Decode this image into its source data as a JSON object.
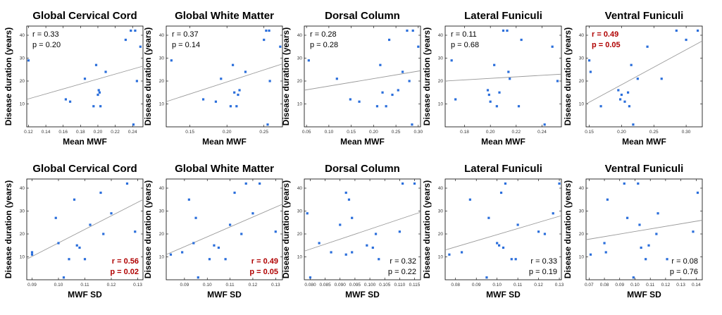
{
  "colors": {
    "point": "#2a6edb",
    "fit": "#9a9a9a",
    "significant": "#b00000",
    "text": "#000000"
  },
  "chart_data": [
    {
      "type": "scatter",
      "title": "Global Cervical Cord",
      "xlabel": "Mean MWF",
      "ylabel": "Disease duration (years)",
      "xlim": [
        0.118,
        0.252
      ],
      "ylim": [
        0,
        44
      ],
      "xticks": [
        0.12,
        0.14,
        0.16,
        0.18,
        0.2,
        0.22,
        0.24
      ],
      "yticks": [
        10,
        20,
        30,
        40
      ],
      "xtick_labels": [
        "0.12",
        "0.14",
        "0.16",
        "0.18",
        "0.20",
        "0.22",
        "0.24"
      ],
      "stats": {
        "r": "r = 0.33",
        "p": "p = 0.20",
        "significant": false,
        "position": "top-left"
      },
      "fit": [
        [
          0.118,
          12
        ],
        [
          0.252,
          26.5
        ]
      ],
      "points": [
        [
          0.12,
          29
        ],
        [
          0.163,
          12
        ],
        [
          0.168,
          11
        ],
        [
          0.185,
          21
        ],
        [
          0.195,
          9
        ],
        [
          0.198,
          27
        ],
        [
          0.2,
          14
        ],
        [
          0.201,
          16
        ],
        [
          0.202,
          15
        ],
        [
          0.203,
          9
        ],
        [
          0.209,
          24
        ],
        [
          0.232,
          38
        ],
        [
          0.238,
          42
        ],
        [
          0.241,
          1
        ],
        [
          0.243,
          42
        ],
        [
          0.245,
          20
        ],
        [
          0.249,
          35
        ]
      ]
    },
    {
      "type": "scatter",
      "title": "Global White Matter",
      "xlabel": "Mean MWF",
      "ylabel": "Disease duration (years)",
      "xlim": [
        0.118,
        0.275
      ],
      "ylim": [
        0,
        44
      ],
      "xticks": [
        0.15,
        0.2,
        0.25
      ],
      "yticks": [
        10,
        20,
        30,
        40
      ],
      "xtick_labels": [
        "0.15",
        "0.20",
        "0.25"
      ],
      "stats": {
        "r": "r = 0.37",
        "p": "p = 0.14",
        "significant": false,
        "position": "top-left"
      },
      "fit": [
        [
          0.118,
          11
        ],
        [
          0.275,
          27.5
        ]
      ],
      "points": [
        [
          0.125,
          29
        ],
        [
          0.168,
          12
        ],
        [
          0.185,
          11
        ],
        [
          0.192,
          21
        ],
        [
          0.205,
          9
        ],
        [
          0.208,
          27
        ],
        [
          0.21,
          15
        ],
        [
          0.213,
          9
        ],
        [
          0.215,
          14
        ],
        [
          0.217,
          16
        ],
        [
          0.225,
          24
        ],
        [
          0.25,
          38
        ],
        [
          0.253,
          42
        ],
        [
          0.255,
          1
        ],
        [
          0.257,
          42
        ],
        [
          0.258,
          20
        ],
        [
          0.272,
          35
        ]
      ]
    },
    {
      "type": "scatter",
      "title": "Dorsal Column",
      "xlabel": "Mean MWF",
      "ylabel": "Disease duration (years)",
      "xlim": [
        0.045,
        0.305
      ],
      "ylim": [
        0,
        44
      ],
      "xticks": [
        0.05,
        0.1,
        0.15,
        0.2,
        0.25,
        0.3
      ],
      "yticks": [
        10,
        20,
        30,
        40
      ],
      "xtick_labels": [
        "0.05",
        "0.10",
        "0.15",
        "0.20",
        "0.25",
        "0.30"
      ],
      "stats": {
        "r": "r = 0.28",
        "p": "p = 0.28",
        "significant": false,
        "position": "top-left"
      },
      "fit": [
        [
          0.045,
          16
        ],
        [
          0.305,
          24.5
        ]
      ],
      "points": [
        [
          0.055,
          29
        ],
        [
          0.118,
          21
        ],
        [
          0.148,
          12
        ],
        [
          0.168,
          11
        ],
        [
          0.208,
          9
        ],
        [
          0.215,
          27
        ],
        [
          0.22,
          15
        ],
        [
          0.228,
          9
        ],
        [
          0.235,
          38
        ],
        [
          0.242,
          14
        ],
        [
          0.255,
          16
        ],
        [
          0.265,
          24
        ],
        [
          0.275,
          42
        ],
        [
          0.28,
          20
        ],
        [
          0.286,
          1
        ],
        [
          0.288,
          42
        ],
        [
          0.3,
          35
        ]
      ]
    },
    {
      "type": "scatter",
      "title": "Lateral Funiculi",
      "xlabel": "Mean MWF",
      "ylabel": "Disease duration (years)",
      "xlim": [
        0.165,
        0.255
      ],
      "ylim": [
        0,
        44
      ],
      "xticks": [
        0.18,
        0.2,
        0.22,
        0.24
      ],
      "yticks": [
        10,
        20,
        30,
        40
      ],
      "xtick_labels": [
        "0.18",
        "0.20",
        "0.22",
        "0.24"
      ],
      "stats": {
        "r": "r = 0.11",
        "p": "p = 0.68",
        "significant": false,
        "position": "top-left"
      },
      "fit": [
        [
          0.165,
          20
        ],
        [
          0.255,
          23
        ]
      ],
      "points": [
        [
          0.17,
          29
        ],
        [
          0.173,
          12
        ],
        [
          0.198,
          16
        ],
        [
          0.199,
          14
        ],
        [
          0.2,
          11
        ],
        [
          0.203,
          27
        ],
        [
          0.205,
          9
        ],
        [
          0.207,
          15
        ],
        [
          0.21,
          42
        ],
        [
          0.213,
          42
        ],
        [
          0.214,
          24
        ],
        [
          0.215,
          21
        ],
        [
          0.222,
          9
        ],
        [
          0.224,
          38
        ],
        [
          0.242,
          1
        ],
        [
          0.248,
          35
        ],
        [
          0.252,
          20
        ]
      ]
    },
    {
      "type": "scatter",
      "title": "Ventral Funiculi",
      "xlabel": "Mean MWF",
      "ylabel": "Disease duration (years)",
      "xlim": [
        0.145,
        0.325
      ],
      "ylim": [
        0,
        44
      ],
      "xticks": [
        0.15,
        0.2,
        0.25,
        0.3
      ],
      "yticks": [
        10,
        20,
        30,
        40
      ],
      "xtick_labels": [
        "0.15",
        "0.20",
        "0.25",
        "0.30"
      ],
      "stats": {
        "r": "r = 0.49",
        "p": "p = 0.05",
        "significant": true,
        "position": "top-left"
      },
      "fit": [
        [
          0.145,
          10
        ],
        [
          0.325,
          37.5
        ]
      ],
      "points": [
        [
          0.15,
          29
        ],
        [
          0.152,
          24
        ],
        [
          0.168,
          9
        ],
        [
          0.195,
          16
        ],
        [
          0.198,
          12
        ],
        [
          0.2,
          14
        ],
        [
          0.205,
          11
        ],
        [
          0.21,
          15
        ],
        [
          0.212,
          9
        ],
        [
          0.215,
          27
        ],
        [
          0.218,
          1
        ],
        [
          0.225,
          21
        ],
        [
          0.24,
          35
        ],
        [
          0.262,
          21
        ],
        [
          0.285,
          42
        ],
        [
          0.3,
          38
        ],
        [
          0.318,
          42
        ]
      ]
    },
    {
      "type": "scatter",
      "title": "Global Cervical Cord",
      "xlabel": "MWF SD",
      "ylabel": "Disease duration (years)",
      "xlim": [
        0.088,
        0.132
      ],
      "ylim": [
        0,
        44
      ],
      "xticks": [
        0.09,
        0.1,
        0.11,
        0.12,
        0.13
      ],
      "yticks": [
        10,
        20,
        30,
        40
      ],
      "xtick_labels": [
        "0.09",
        "0.10",
        "0.11",
        "0.12",
        "0.13"
      ],
      "stats": {
        "r": "r = 0.56",
        "p": "p = 0.02",
        "significant": true,
        "position": "bottom-right"
      },
      "fit": [
        [
          0.088,
          9
        ],
        [
          0.132,
          35
        ]
      ],
      "points": [
        [
          0.09,
          11
        ],
        [
          0.09,
          12
        ],
        [
          0.099,
          27
        ],
        [
          0.1,
          16
        ],
        [
          0.102,
          1
        ],
        [
          0.104,
          9
        ],
        [
          0.106,
          35
        ],
        [
          0.107,
          15
        ],
        [
          0.108,
          14
        ],
        [
          0.11,
          9
        ],
        [
          0.112,
          24
        ],
        [
          0.116,
          38
        ],
        [
          0.117,
          20
        ],
        [
          0.12,
          29
        ],
        [
          0.126,
          42
        ],
        [
          0.129,
          21
        ]
      ]
    },
    {
      "type": "scatter",
      "title": "Global White Matter",
      "xlabel": "MWF SD",
      "ylabel": "Disease duration (years)",
      "xlim": [
        0.082,
        0.133
      ],
      "ylim": [
        0,
        44
      ],
      "xticks": [
        0.09,
        0.1,
        0.11,
        0.12,
        0.13
      ],
      "yticks": [
        10,
        20,
        30,
        40
      ],
      "xtick_labels": [
        "0.09",
        "0.10",
        "0.11",
        "0.12",
        "0.13"
      ],
      "stats": {
        "r": "r = 0.49",
        "p": "p = 0.05",
        "significant": true,
        "position": "bottom-right"
      },
      "fit": [
        [
          0.082,
          11
        ],
        [
          0.133,
          33
        ]
      ],
      "points": [
        [
          0.084,
          11
        ],
        [
          0.089,
          12
        ],
        [
          0.092,
          35
        ],
        [
          0.094,
          16
        ],
        [
          0.095,
          27
        ],
        [
          0.096,
          1
        ],
        [
          0.101,
          9
        ],
        [
          0.103,
          15
        ],
        [
          0.105,
          14
        ],
        [
          0.108,
          9
        ],
        [
          0.11,
          24
        ],
        [
          0.112,
          38
        ],
        [
          0.115,
          20
        ],
        [
          0.117,
          42
        ],
        [
          0.12,
          29
        ],
        [
          0.123,
          42
        ],
        [
          0.13,
          21
        ]
      ]
    },
    {
      "type": "scatter",
      "title": "Dorsal Column",
      "xlabel": "MWF SD",
      "ylabel": "Disease duration (years)",
      "xlim": [
        0.078,
        0.117
      ],
      "ylim": [
        0,
        44
      ],
      "xticks": [
        0.08,
        0.085,
        0.09,
        0.095,
        0.1,
        0.105,
        0.11,
        0.115
      ],
      "yticks": [
        10,
        20,
        30,
        40
      ],
      "xtick_labels": [
        "0.080",
        "0.085",
        "0.090",
        "0.095",
        "0.100",
        "0.105",
        "0.110",
        "0.115"
      ],
      "stats": {
        "r": "r = 0.32",
        "p": "p = 0.22",
        "significant": false,
        "position": "bottom-right"
      },
      "fit": [
        [
          0.078,
          12.5
        ],
        [
          0.117,
          29.5
        ]
      ],
      "points": [
        [
          0.079,
          29
        ],
        [
          0.08,
          1
        ],
        [
          0.083,
          16
        ],
        [
          0.087,
          12
        ],
        [
          0.09,
          24
        ],
        [
          0.092,
          11
        ],
        [
          0.092,
          38
        ],
        [
          0.093,
          35
        ],
        [
          0.094,
          27
        ],
        [
          0.094,
          12
        ],
        [
          0.099,
          15
        ],
        [
          0.101,
          14
        ],
        [
          0.102,
          20
        ],
        [
          0.103,
          9
        ],
        [
          0.11,
          21
        ],
        [
          0.111,
          42
        ],
        [
          0.115,
          42
        ]
      ]
    },
    {
      "type": "scatter",
      "title": "Lateral Funiculi",
      "xlabel": "MWF SD",
      "ylabel": "Disease duration (years)",
      "xlim": [
        0.075,
        0.131
      ],
      "ylim": [
        0,
        44
      ],
      "xticks": [
        0.08,
        0.09,
        0.1,
        0.11,
        0.12,
        0.13
      ],
      "yticks": [
        10,
        20,
        30,
        40
      ],
      "xtick_labels": [
        "0.08",
        "0.09",
        "0.10",
        "0.11",
        "0.12",
        "0.13"
      ],
      "stats": {
        "r": "r = 0.33",
        "p": "p = 0.19",
        "significant": false,
        "position": "bottom-right"
      },
      "fit": [
        [
          0.075,
          13
        ],
        [
          0.131,
          28
        ]
      ],
      "points": [
        [
          0.077,
          11
        ],
        [
          0.083,
          12
        ],
        [
          0.087,
          35
        ],
        [
          0.095,
          1
        ],
        [
          0.096,
          27
        ],
        [
          0.1,
          16
        ],
        [
          0.101,
          15
        ],
        [
          0.102,
          38
        ],
        [
          0.103,
          14
        ],
        [
          0.104,
          42
        ],
        [
          0.107,
          9
        ],
        [
          0.109,
          9
        ],
        [
          0.11,
          24
        ],
        [
          0.12,
          21
        ],
        [
          0.123,
          20
        ],
        [
          0.127,
          29
        ],
        [
          0.13,
          42
        ]
      ]
    },
    {
      "type": "scatter",
      "title": "Ventral Funiculi",
      "xlabel": "MWF SD",
      "ylabel": "Disease duration (years)",
      "xlim": [
        0.068,
        0.144
      ],
      "ylim": [
        0,
        44
      ],
      "xticks": [
        0.07,
        0.08,
        0.09,
        0.1,
        0.11,
        0.12,
        0.13,
        0.14
      ],
      "yticks": [
        10,
        20,
        30,
        40
      ],
      "xtick_labels": [
        "0.07",
        "0.08",
        "0.09",
        "0.10",
        "0.11",
        "0.12",
        "0.13",
        "0.14"
      ],
      "stats": {
        "r": "r = 0.08",
        "p": "p = 0.76",
        "significant": false,
        "position": "bottom-right"
      },
      "fit": [
        [
          0.068,
          17.5
        ],
        [
          0.144,
          26
        ]
      ],
      "points": [
        [
          0.071,
          11
        ],
        [
          0.08,
          16
        ],
        [
          0.081,
          12
        ],
        [
          0.082,
          35
        ],
        [
          0.093,
          42
        ],
        [
          0.095,
          27
        ],
        [
          0.099,
          1
        ],
        [
          0.102,
          42
        ],
        [
          0.103,
          24
        ],
        [
          0.104,
          14
        ],
        [
          0.107,
          9
        ],
        [
          0.109,
          15
        ],
        [
          0.114,
          20
        ],
        [
          0.115,
          29
        ],
        [
          0.121,
          9
        ],
        [
          0.138,
          21
        ],
        [
          0.141,
          38
        ]
      ]
    }
  ]
}
